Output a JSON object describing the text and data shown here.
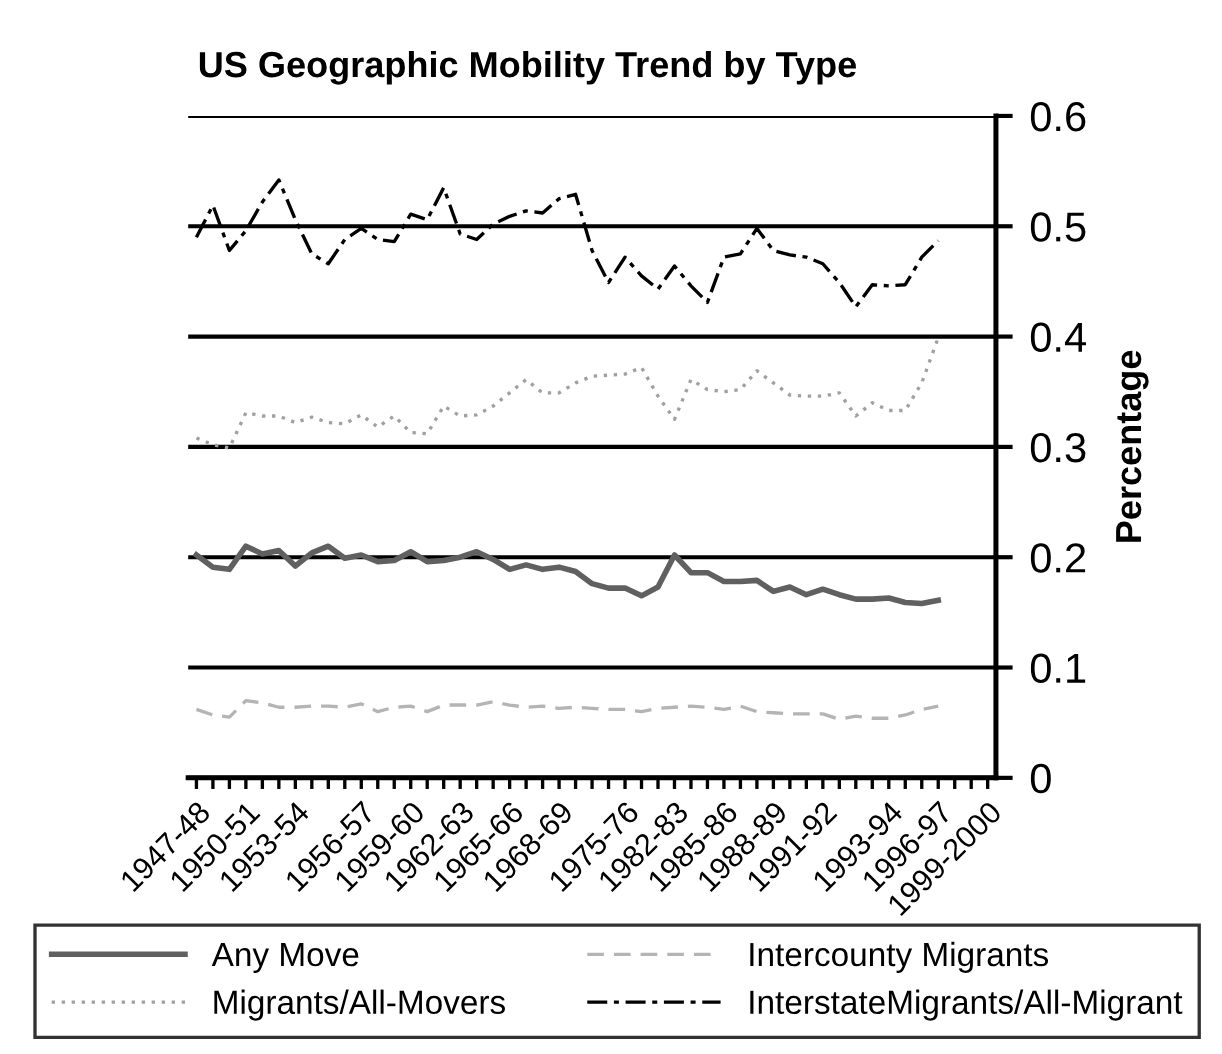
{
  "chart_data": {
    "type": "line",
    "title": "US Geographic Mobility Trend by Type",
    "ylabel": "Percentage",
    "categories": [
      "1947-48",
      null,
      null,
      "1950-51",
      null,
      null,
      "1953-54",
      null,
      null,
      null,
      "1956-57",
      null,
      null,
      "1959-60",
      null,
      null,
      "1962-63",
      null,
      null,
      "1965-66",
      null,
      null,
      "1968-69",
      null,
      null,
      null,
      "1975-76",
      null,
      null,
      "1982-83",
      null,
      null,
      "1985-86",
      null,
      null,
      "1988-89",
      null,
      null,
      "1991-92",
      null,
      null,
      null,
      "1993-94",
      null,
      null,
      "1996-97",
      null,
      null,
      "1999-2000"
    ],
    "series": [
      {
        "name": "Any Move",
        "color": "#606060",
        "line_style": "solid",
        "values": [
          0.202,
          0.191,
          0.189,
          0.21,
          0.203,
          0.206,
          0.192,
          0.204,
          0.21,
          0.199,
          0.202,
          0.196,
          0.197,
          0.205,
          0.196,
          0.197,
          0.2,
          0.205,
          0.198,
          0.189,
          0.193,
          0.189,
          0.191,
          0.187,
          0.176,
          0.172,
          0.172,
          0.165,
          0.173,
          0.202,
          0.186,
          0.186,
          0.178,
          0.178,
          0.179,
          0.169,
          0.173,
          0.166,
          0.171,
          0.166,
          0.162,
          0.162,
          0.163,
          0.159,
          0.158,
          0.161,
          null,
          null,
          null
        ]
      },
      {
        "name": "Migrants/All-Movers",
        "color": "#a0a0a0",
        "line_style": "dotted",
        "values": [
          0.308,
          0.302,
          0.299,
          0.331,
          0.328,
          0.328,
          0.322,
          0.327,
          0.322,
          0.321,
          0.329,
          0.318,
          0.328,
          0.313,
          0.312,
          0.337,
          0.328,
          0.329,
          0.337,
          0.349,
          0.361,
          0.349,
          0.349,
          0.358,
          0.364,
          0.365,
          0.366,
          0.372,
          0.346,
          0.325,
          0.361,
          0.352,
          0.35,
          0.352,
          0.369,
          0.358,
          0.347,
          0.346,
          0.346,
          0.349,
          0.328,
          0.34,
          0.333,
          0.333,
          0.358,
          0.399,
          null,
          null,
          null
        ]
      },
      {
        "name": "Intercounty Migrants",
        "color": "#b4b4b4",
        "line_style": "dashed",
        "values": [
          0.062,
          0.057,
          0.055,
          0.07,
          0.068,
          0.064,
          0.064,
          0.065,
          0.065,
          0.064,
          0.067,
          0.06,
          0.064,
          0.065,
          0.06,
          0.066,
          0.066,
          0.066,
          0.069,
          0.066,
          0.064,
          0.065,
          0.063,
          0.064,
          0.063,
          0.062,
          0.062,
          0.06,
          0.063,
          0.064,
          0.065,
          0.064,
          0.062,
          0.065,
          0.06,
          0.059,
          0.058,
          0.058,
          0.058,
          0.053,
          0.056,
          0.054,
          0.054,
          0.057,
          0.062,
          0.065,
          null,
          null,
          null
        ]
      },
      {
        "name": "InterstateMigrants/All-Migrant",
        "color": "#000000",
        "line_style": "dashdot",
        "values": [
          0.49,
          0.519,
          0.478,
          0.496,
          0.522,
          0.542,
          0.506,
          0.475,
          0.466,
          0.488,
          0.498,
          0.488,
          0.486,
          0.511,
          0.506,
          0.535,
          0.493,
          0.488,
          0.502,
          0.509,
          0.514,
          0.512,
          0.525,
          0.529,
          0.478,
          0.449,
          0.472,
          0.455,
          0.443,
          0.464,
          0.446,
          0.431,
          0.472,
          0.475,
          0.498,
          0.478,
          0.474,
          0.472,
          0.466,
          0.449,
          0.427,
          0.447,
          0.446,
          0.447,
          0.472,
          0.487,
          null,
          null,
          null
        ]
      }
    ],
    "ylim": [
      0,
      0.6
    ],
    "yticks": [
      0,
      0.1,
      0.2,
      0.3,
      0.4,
      0.5,
      0.6
    ],
    "grid": "y",
    "legend": "bottom",
    "marker": "none"
  }
}
